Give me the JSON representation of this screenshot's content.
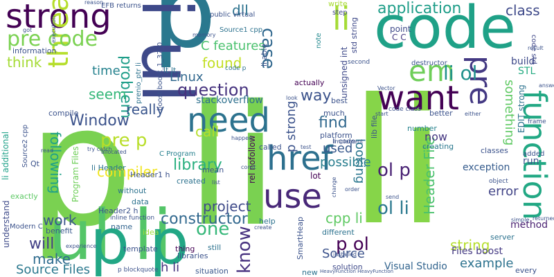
{
  "words": [
    {
      "text": "p li",
      "color": "#7ad151"
    },
    {
      "text": "li",
      "color": "#86d549"
    },
    {
      "text": "p",
      "color": "#2a788e"
    },
    {
      "text": "code",
      "color": "#1fa187"
    },
    {
      "text": "ul li",
      "color": "#54c568"
    },
    {
      "text": "li ul",
      "color": "#3e4989"
    },
    {
      "text": "p p",
      "color": "#22a785"
    },
    {
      "text": "strong",
      "color": "#440154"
    },
    {
      "text": "thread",
      "color": "#b5de2b"
    },
    {
      "text": "need",
      "color": "#2c728e"
    },
    {
      "text": "want",
      "color": "#440154"
    },
    {
      "text": "href",
      "color": "#2d708e"
    },
    {
      "text": "use",
      "color": "#482878"
    },
    {
      "text": "function",
      "color": "#22a884"
    },
    {
      "text": "pre",
      "color": "#443983"
    },
    {
      "text": "em",
      "color": "#6ece58"
    },
    {
      "text": "li ol",
      "color": "#21918c"
    },
    {
      "text": "pre code",
      "color": "#7ad151"
    },
    {
      "text": "application",
      "color": "#1f9e89"
    },
    {
      "text": "class",
      "color": "#3e4989"
    },
    {
      "text": "dll",
      "color": "#2c728e"
    },
    {
      "text": "case",
      "color": "#31688e"
    },
    {
      "text": "C features",
      "color": "#4ac16d"
    },
    {
      "text": "problem",
      "color": "#1f9e89"
    },
    {
      "text": "think",
      "color": "#a5db36"
    },
    {
      "text": "information",
      "color": "#3b528b"
    },
    {
      "text": "time",
      "color": "#26828e"
    },
    {
      "text": "found",
      "color": "#c2df23"
    },
    {
      "text": "question",
      "color": "#46327e"
    },
    {
      "text": "Linux",
      "color": "#31688e"
    },
    {
      "text": "seem",
      "color": "#35b779"
    },
    {
      "text": "really",
      "color": "#39558c"
    },
    {
      "text": "Window",
      "color": "#3b528b"
    },
    {
      "text": "pre p",
      "color": "#b8de29"
    },
    {
      "text": "call",
      "color": "#b5de2b"
    },
    {
      "text": "library",
      "color": "#29af7f"
    },
    {
      "text": "compiler",
      "color": "#f1e51d"
    },
    {
      "text": "following",
      "color": "#1fa188"
    },
    {
      "text": "project",
      "color": "#3e4a89"
    },
    {
      "text": "work",
      "color": "#3a548c"
    },
    {
      "text": "constructor",
      "color": "#31688e"
    },
    {
      "text": "one",
      "color": "#35b779"
    },
    {
      "text": "will",
      "color": "#424086"
    },
    {
      "text": "make",
      "color": "#2f6c8e"
    },
    {
      "text": "Source Files",
      "color": "#2a788e"
    },
    {
      "text": "know",
      "color": "#46307e"
    },
    {
      "text": "cpp li",
      "color": "#5ec962"
    },
    {
      "text": "ol li",
      "color": "#2a788e"
    },
    {
      "text": "p ol",
      "color": "#440154"
    },
    {
      "text": "string",
      "color": "#b5de2b"
    },
    {
      "text": "example",
      "color": "#2c728e"
    },
    {
      "text": "error",
      "color": "#414487"
    },
    {
      "text": "possible",
      "color": "#287d8e"
    },
    {
      "text": "looking",
      "color": "#2a768e"
    },
    {
      "text": "find",
      "color": "#31688e"
    },
    {
      "text": "used",
      "color": "#38588c"
    },
    {
      "text": "way",
      "color": "#3b528b"
    },
    {
      "text": "ol p",
      "color": "#482173"
    },
    {
      "text": "something",
      "color": "#5ec962"
    },
    {
      "text": "li",
      "color": "#a5db36"
    },
    {
      "text": "p strong",
      "color": "#3b528b"
    },
    {
      "text": "h li",
      "color": "#46337f"
    },
    {
      "text": "Visual Studio",
      "color": "#32648e"
    },
    {
      "text": "Header File",
      "color": "#4ac16d"
    },
    {
      "text": "Source",
      "color": "#3b528b"
    },
    {
      "text": "Files boost",
      "color": "#443983"
    },
    {
      "text": "now",
      "color": "#453781"
    },
    {
      "text": "exception",
      "color": "#365c8d"
    },
    {
      "text": "STL",
      "color": "#25ab82"
    },
    {
      "text": "build",
      "color": "#3e4989"
    },
    {
      "text": "method",
      "color": "#481f70"
    },
    {
      "text": "stackoverflow",
      "color": "#2d708e"
    },
    {
      "text": "code p",
      "color": "#2c728e"
    },
    {
      "text": "write",
      "color": "#a8db34"
    },
    {
      "text": "step",
      "color": "#3f4788"
    },
    {
      "text": "note",
      "color": "#23898e"
    },
    {
      "text": "point",
      "color": "#3e4989"
    },
    {
      "text": "C C",
      "color": "#443983"
    },
    {
      "text": "code std",
      "color": "#3f4788"
    },
    {
      "text": "Program Files",
      "color": "#6ece58"
    },
    {
      "text": "C Program",
      "color": "#27808e"
    },
    {
      "text": "li additional",
      "color": "#1fa188"
    },
    {
      "text": "understand",
      "color": "#3e4a89"
    },
    {
      "text": "exactly",
      "color": "#5cc863"
    },
    {
      "text": "benefit",
      "color": "#38588c"
    },
    {
      "text": "name",
      "color": "#32648e"
    },
    {
      "text": "idea",
      "color": "#a0da39"
    },
    {
      "text": "template",
      "color": "#3b528b"
    },
    {
      "text": "situation",
      "color": "#39568c"
    },
    {
      "text": "libraries",
      "color": "#3b528b"
    },
    {
      "text": "still",
      "color": "#2c728e"
    },
    {
      "text": "help",
      "color": "#2c728e"
    },
    {
      "text": "solution",
      "color": "#3e4989"
    },
    {
      "text": "new",
      "color": "#2c728e"
    },
    {
      "text": "server",
      "color": "#2c728e"
    },
    {
      "text": "every",
      "color": "#3b528b"
    },
    {
      "text": "different",
      "color": "#2c728e"
    },
    {
      "text": "better",
      "color": "#3b528b"
    },
    {
      "text": "number",
      "color": "#26828e"
    },
    {
      "text": "creating",
      "color": "#2a788e"
    },
    {
      "text": "classes",
      "color": "#3b528b"
    },
    {
      "text": "data",
      "color": "#2c728e"
    },
    {
      "text": "thing",
      "color": "#440154"
    },
    {
      "text": "without",
      "color": "#2c728e"
    },
    {
      "text": "created",
      "color": "#2c728e"
    },
    {
      "text": "mean",
      "color": "#3b528b"
    },
    {
      "text": "lot",
      "color": "#440154"
    },
    {
      "text": "called",
      "color": "#3b528b"
    },
    {
      "text": "platform",
      "color": "#3b528b"
    },
    {
      "text": "best",
      "color": "#3b528b"
    },
    {
      "text": "much",
      "color": "#3b528b"
    },
    {
      "text": "actually",
      "color": "#440154"
    },
    {
      "text": "lib file",
      "color": "#3b528b"
    },
    {
      "text": "lt lt",
      "color": "#2c728e"
    },
    {
      "text": "Qt",
      "color": "#3b528b"
    },
    {
      "text": "compile",
      "color": "#3b528b"
    },
    {
      "text": "li Header",
      "color": "#2c728e"
    },
    {
      "text": "Header1 h",
      "color": "#3b528b"
    },
    {
      "text": "Header2 h",
      "color": "#3b528b"
    },
    {
      "text": "SmartHeap",
      "color": "#3b528b"
    },
    {
      "text": "rel nofollow",
      "color": "#440154"
    },
    {
      "text": "unsigned int",
      "color": "#3e4989"
    },
    {
      "text": "std string",
      "color": "#3e4989"
    },
    {
      "text": "Source1 cpp",
      "color": "#2c728e"
    },
    {
      "text": "boost boost_1_37_0",
      "color": "#3b528b"
    },
    {
      "text": "public virtual",
      "color": "#3b528b"
    },
    {
      "text": "EFB returns",
      "color": "#3b528b"
    },
    {
      "text": "prenio_ptr li",
      "color": "#2c728e"
    },
    {
      "text": "Source2 cpp",
      "color": "#3b528b"
    },
    {
      "text": "Modern C",
      "color": "#3b528b"
    },
    {
      "text": "inline function",
      "color": "#3b528b"
    },
    {
      "text": "p blockquote",
      "color": "#3b528b"
    },
    {
      "text": "HeavyFunction HeavyFunction",
      "color": "#3b528b"
    },
    {
      "text": "EDIT strong",
      "color": "#2c728e"
    },
    {
      "text": "li code",
      "color": "#3b528b"
    },
    {
      "text": "code class",
      "color": "#3b528b"
    },
    {
      "text": "run",
      "color": "#3b528b"
    },
    {
      "text": "frame",
      "color": "#3b528b"
    },
    {
      "text": "added",
      "color": "#3b528b"
    },
    {
      "text": "object",
      "color": "#3b528b"
    },
    {
      "text": "destructor",
      "color": "#3b528b"
    },
    {
      "text": "second",
      "color": "#3b528b"
    },
    {
      "text": "look",
      "color": "#3b528b"
    },
    {
      "text": "start",
      "color": "#3b528b"
    },
    {
      "text": "test",
      "color": "#3b528b"
    },
    {
      "text": "Implement",
      "color": "#3b528b"
    },
    {
      "text": "const",
      "color": "#3b528b"
    },
    {
      "text": "list",
      "color": "#3b528b"
    },
    {
      "text": "create",
      "color": "#3b528b"
    },
    {
      "text": "installed",
      "color": "#3b528b"
    },
    {
      "text": "experience",
      "color": "#3b528b"
    },
    {
      "text": "try catch",
      "color": "#3b528b"
    },
    {
      "text": "allocated",
      "color": "#3b528b"
    },
    {
      "text": "read",
      "color": "#3b528b"
    },
    {
      "text": "execution",
      "color": "#3b528b"
    },
    {
      "text": "got",
      "color": "#3b528b"
    },
    {
      "text": "reason",
      "color": "#3b528b"
    },
    {
      "text": "memory",
      "color": "#3b528b"
    },
    {
      "text": "result",
      "color": "#3b528b"
    },
    {
      "text": "order",
      "color": "#3b528b"
    },
    {
      "text": "change",
      "color": "#3b528b"
    },
    {
      "text": "send",
      "color": "#3b528b"
    },
    {
      "text": "returned",
      "color": "#3b528b"
    },
    {
      "text": "simple",
      "color": "#3b528b"
    },
    {
      "text": "either",
      "color": "#3b528b"
    },
    {
      "text": "happen",
      "color": "#3b528b"
    },
    {
      "text": "answer",
      "color": "#3b528b"
    },
    {
      "text": "li able",
      "color": "#3b528b"
    },
    {
      "text": "Vector",
      "color": "#3b528b"
    }
  ]
}
